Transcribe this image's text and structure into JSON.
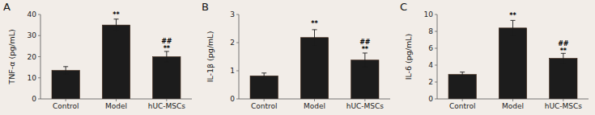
{
  "chart_data": [
    {
      "type": "bar",
      "title": "A",
      "ylabel": "TNF-α (pg/mL)",
      "categories": [
        "Control",
        "Model",
        "hUC-MSCs"
      ],
      "values": [
        13.5,
        35.0,
        20.0
      ],
      "errors": [
        1.8,
        2.8,
        2.5
      ],
      "color": "#1c1c1c",
      "ylim": [
        0,
        40
      ],
      "yticks": [
        0,
        10,
        20,
        30,
        40
      ],
      "grid": false,
      "annotations": [
        {
          "category": "Model",
          "y": 38.2,
          "text": "**"
        },
        {
          "category": "hUC-MSCs",
          "y": 24.0,
          "text": "##"
        },
        {
          "category": "hUC-MSCs",
          "y": 22.0,
          "text": "**"
        }
      ]
    },
    {
      "type": "bar",
      "title": "B",
      "ylabel": "IL-1β (pg/mL)",
      "categories": [
        "Control",
        "Model",
        "hUC-MSCs"
      ],
      "values": [
        0.82,
        2.18,
        1.38
      ],
      "errors": [
        0.1,
        0.28,
        0.25
      ],
      "color": "#1c1c1c",
      "ylim": [
        0,
        3
      ],
      "yticks": [
        0,
        1,
        2,
        3
      ],
      "grid": false,
      "annotations": [
        {
          "category": "Model",
          "y": 2.55,
          "text": "**"
        },
        {
          "category": "hUC-MSCs",
          "y": 1.78,
          "text": "##"
        },
        {
          "category": "hUC-MSCs",
          "y": 1.62,
          "text": "**"
        }
      ]
    },
    {
      "type": "bar",
      "title": "C",
      "ylabel": "IL-6 (pg/mL)",
      "categories": [
        "Control",
        "Model",
        "hUC-MSCs"
      ],
      "values": [
        2.9,
        8.4,
        4.8
      ],
      "errors": [
        0.28,
        0.9,
        0.6
      ],
      "color": "#1c1c1c",
      "ylim": [
        0,
        10
      ],
      "yticks": [
        0,
        2,
        4,
        6,
        8,
        10
      ],
      "grid": false,
      "annotations": [
        {
          "category": "Model",
          "y": 9.45,
          "text": "**"
        },
        {
          "category": "hUC-MSCs",
          "y": 5.75,
          "text": "##"
        },
        {
          "category": "hUC-MSCs",
          "y": 5.25,
          "text": "**"
        }
      ]
    }
  ]
}
